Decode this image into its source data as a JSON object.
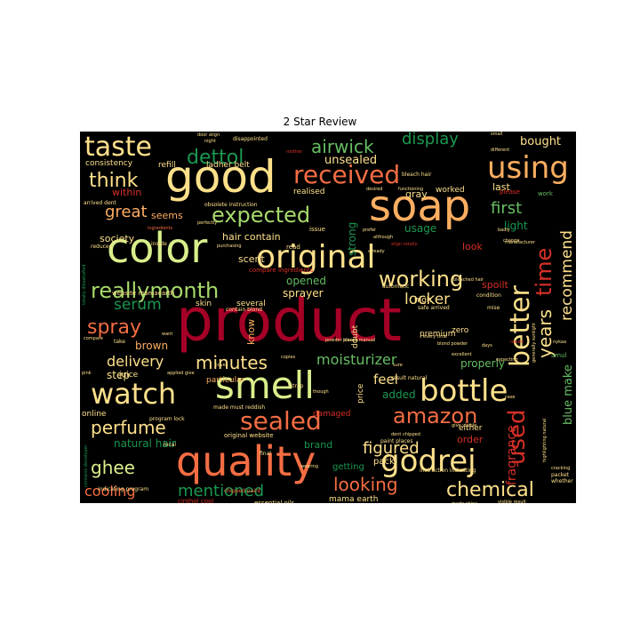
{
  "chart_data": {
    "type": "wordcloud",
    "title": "2 Star Review",
    "background": "#000000",
    "colormap": [
      "#a50026",
      "#d73027",
      "#f46d43",
      "#fdae61",
      "#fee08b",
      "#d9ef8b",
      "#a6d96a",
      "#66bd63",
      "#1a9850",
      "#006837"
    ],
    "words": [
      {
        "text": "product",
        "weight": 100,
        "color": "#a50026"
      },
      {
        "text": "good",
        "weight": 62,
        "color": "#fee08b"
      },
      {
        "text": "soap",
        "weight": 60,
        "color": "#fdae61"
      },
      {
        "text": "color",
        "weight": 58,
        "color": "#d9ef8b"
      },
      {
        "text": "quality",
        "weight": 56,
        "color": "#f46d43"
      },
      {
        "text": "smell",
        "weight": 52,
        "color": "#d9ef8b"
      },
      {
        "text": "original",
        "weight": 46,
        "color": "#fee08b"
      },
      {
        "text": "using",
        "weight": 42,
        "color": "#fdae61"
      },
      {
        "text": "taste",
        "weight": 40,
        "color": "#fee08b"
      },
      {
        "text": "watch",
        "weight": 40,
        "color": "#fee08b"
      },
      {
        "text": "bottle",
        "weight": 40,
        "color": "#fee08b"
      },
      {
        "text": "godrej",
        "weight": 40,
        "color": "#fee08b"
      },
      {
        "text": "better",
        "weight": 38,
        "color": "#fee08b"
      },
      {
        "text": "received",
        "weight": 36,
        "color": "#f46d43"
      },
      {
        "text": "sealed",
        "weight": 34,
        "color": "#f46d43"
      },
      {
        "text": "reallymonth",
        "weight": 32,
        "color": "#a6d96a"
      },
      {
        "text": "expected",
        "weight": 30,
        "color": "#a6d96a"
      },
      {
        "text": "working",
        "weight": 30,
        "color": "#fee08b"
      },
      {
        "text": "used",
        "weight": 30,
        "color": "#d73027"
      },
      {
        "text": "amazon",
        "weight": 30,
        "color": "#f46d43"
      },
      {
        "text": "chemical",
        "weight": 28,
        "color": "#fee08b"
      },
      {
        "text": "think",
        "weight": 26,
        "color": "#fee08b"
      },
      {
        "text": "airwick",
        "weight": 26,
        "color": "#66bd63"
      },
      {
        "text": "dettol",
        "weight": 26,
        "color": "#1a9850"
      },
      {
        "text": "time",
        "weight": 28,
        "color": "#d73027"
      },
      {
        "text": "spray",
        "weight": 24,
        "color": "#f46d43"
      },
      {
        "text": "perfume",
        "weight": 24,
        "color": "#fee08b"
      },
      {
        "text": "minutes",
        "weight": 24,
        "color": "#fee08b"
      },
      {
        "text": "ghee",
        "weight": 24,
        "color": "#d9ef8b"
      },
      {
        "text": "years",
        "weight": 24,
        "color": "#fee08b"
      },
      {
        "text": "looking",
        "weight": 24,
        "color": "#f46d43"
      },
      {
        "text": "mentioned",
        "weight": 22,
        "color": "#1a9850"
      },
      {
        "text": "display",
        "weight": 22,
        "color": "#1a9850"
      },
      {
        "text": "great",
        "weight": 22,
        "color": "#fdae61"
      },
      {
        "text": "recommend",
        "weight": 22,
        "color": "#fee08b"
      },
      {
        "text": "first",
        "weight": 22,
        "color": "#66bd63"
      },
      {
        "text": "figured",
        "weight": 22,
        "color": "#fee08b"
      },
      {
        "text": "cooling",
        "weight": 20,
        "color": "#f46d43"
      },
      {
        "text": "delivery",
        "weight": 20,
        "color": "#fee08b"
      },
      {
        "text": "locker",
        "weight": 20,
        "color": "#fee08b"
      },
      {
        "text": "serum",
        "weight": 20,
        "color": "#1a9850"
      },
      {
        "text": "moisturizer",
        "weight": 18,
        "color": "#66bd63"
      },
      {
        "text": "fragrance",
        "weight": 18,
        "color": "#d73027"
      },
      {
        "text": "blue make",
        "weight": 16,
        "color": "#66bd63"
      },
      {
        "text": "feel",
        "weight": 18,
        "color": "#fee08b"
      },
      {
        "text": "unsealed",
        "weight": 16,
        "color": "#fee08b"
      },
      {
        "text": "bought",
        "weight": 14,
        "color": "#fee08b"
      },
      {
        "text": "strong",
        "weight": 14,
        "color": "#1a9850"
      },
      {
        "text": "brown",
        "weight": 14,
        "color": "#fdae61"
      },
      {
        "text": "natural hair",
        "weight": 14,
        "color": "#1a9850"
      },
      {
        "text": "sprayer",
        "weight": 14,
        "color": "#fee08b"
      },
      {
        "text": "properly",
        "weight": 14,
        "color": "#66bd63"
      },
      {
        "text": "opened",
        "weight": 14,
        "color": "#66bd63"
      },
      {
        "text": "step",
        "weight": 14,
        "color": "#fee08b"
      },
      {
        "text": "added",
        "weight": 14,
        "color": "#1a9850"
      },
      {
        "text": "light",
        "weight": 14,
        "color": "#1a9850"
      },
      {
        "text": "usage",
        "weight": 14,
        "color": "#1a9850"
      },
      {
        "text": "hair contain",
        "weight": 12,
        "color": "#fee08b"
      },
      {
        "text": "seems",
        "weight": 12,
        "color": "#fdae61"
      },
      {
        "text": "within",
        "weight": 12,
        "color": "#d73027"
      },
      {
        "text": "society",
        "weight": 12,
        "color": "#fee08b"
      },
      {
        "text": "scent",
        "weight": 12,
        "color": "#fee08b"
      },
      {
        "text": "know",
        "weight": 12,
        "color": "#fdae61"
      },
      {
        "text": "look",
        "weight": 12,
        "color": "#d73027"
      },
      {
        "text": "last",
        "weight": 12,
        "color": "#fee08b"
      },
      {
        "text": "spoilt",
        "weight": 12,
        "color": "#d73027"
      },
      {
        "text": "gray",
        "weight": 12,
        "color": "#fee08b"
      },
      {
        "text": "brand",
        "weight": 12,
        "color": "#1a9850"
      },
      {
        "text": "order",
        "weight": 12,
        "color": "#d73027"
      },
      {
        "text": "pack",
        "weight": 11,
        "color": "#fee08b"
      },
      {
        "text": "getting",
        "weight": 11,
        "color": "#1a9850"
      },
      {
        "text": "mama earth",
        "weight": 10,
        "color": "#fee08b"
      },
      {
        "text": "consistency",
        "weight": 10,
        "color": "#fee08b"
      },
      {
        "text": "refill",
        "weight": 10,
        "color": "#fee08b"
      },
      {
        "text": "ladher belt",
        "weight": 10,
        "color": "#fee08b"
      },
      {
        "text": "realised",
        "weight": 10,
        "color": "#fee08b"
      },
      {
        "text": "worked",
        "weight": 10,
        "color": "#fee08b"
      },
      {
        "text": "skin",
        "weight": 10,
        "color": "#fee08b"
      },
      {
        "text": "several",
        "weight": 10,
        "color": "#fee08b"
      },
      {
        "text": "zero",
        "weight": 10,
        "color": "#fee08b"
      },
      {
        "text": "premium",
        "weight": 10,
        "color": "#fee08b"
      },
      {
        "text": "doubt",
        "weight": 10,
        "color": "#fee08b"
      },
      {
        "text": "price",
        "weight": 10,
        "color": "#fee08b"
      },
      {
        "text": "damaged",
        "weight": 10,
        "color": "#d73027"
      },
      {
        "text": "either",
        "weight": 10,
        "color": "#fee08b"
      },
      {
        "text": "high",
        "weight": 10,
        "color": "#fee08b"
      },
      {
        "text": "online",
        "weight": 9,
        "color": "#fee08b"
      },
      {
        "text": "particular",
        "weight": 9,
        "color": "#fdae61"
      },
      {
        "text": "juice",
        "weight": 9,
        "color": "#fee08b"
      },
      {
        "text": "website mamaearth",
        "weight": 8,
        "color": "#fee08b"
      },
      {
        "text": "original website",
        "weight": 8,
        "color": "#fee08b"
      },
      {
        "text": "essential oils",
        "weight": 8,
        "color": "#fee08b"
      },
      {
        "text": "cinthol cool",
        "weight": 8,
        "color": "#d73027"
      },
      {
        "text": "compare ingredients",
        "weight": 8,
        "color": "#d73027"
      },
      {
        "text": "issue",
        "weight": 8,
        "color": "#fee08b"
      },
      {
        "text": "read",
        "weight": 8,
        "color": "#fee08b"
      },
      {
        "text": "amul",
        "weight": 8,
        "color": "#66bd63"
      },
      {
        "text": "please",
        "weight": 8,
        "color": "#d73027"
      },
      {
        "text": "work",
        "weight": 8,
        "color": "#66bd63"
      },
      {
        "text": "packet",
        "weight": 7,
        "color": "#fee08b"
      },
      {
        "text": "whether",
        "weight": 7,
        "color": "#fee08b"
      },
      {
        "text": "disappointed",
        "weight": 7,
        "color": "#fee08b"
      },
      {
        "text": "arrived dent",
        "weight": 7,
        "color": "#fee08b"
      },
      {
        "text": "safe arrived",
        "weight": 7,
        "color": "#fee08b"
      },
      {
        "text": "paint places",
        "weight": 7,
        "color": "#fee08b"
      },
      {
        "text": "result natural",
        "weight": 7,
        "color": "#fee08b"
      },
      {
        "text": "program lock",
        "weight": 7,
        "color": "#fee08b"
      },
      {
        "text": "made must reddish",
        "weight": 7,
        "color": "#fee08b"
      },
      {
        "text": "chipped paint",
        "weight": 7,
        "color": "#f46d43"
      },
      {
        "text": "instruction indicating",
        "weight": 7,
        "color": "#fee08b"
      },
      {
        "text": "indicating program",
        "weight": 7,
        "color": "#fee08b"
      },
      {
        "text": "contain blond",
        "weight": 7,
        "color": "#fee08b"
      },
      {
        "text": "obsolete instruction",
        "weight": 7,
        "color": "#fee08b"
      },
      {
        "text": "bleach hair",
        "weight": 7,
        "color": "#fee08b"
      },
      {
        "text": "mise",
        "weight": 7,
        "color": "#fee08b"
      },
      {
        "text": "take",
        "weight": 7,
        "color": "#fee08b"
      },
      {
        "text": "local",
        "weight": 7,
        "color": "#fee08b"
      },
      {
        "text": "final",
        "weight": 7,
        "color": "#fee08b"
      },
      {
        "text": "strap",
        "weight": 7,
        "color": "#fee08b"
      },
      {
        "text": "condition",
        "weight": 7,
        "color": "#fee08b"
      },
      {
        "text": "reduced",
        "weight": 7,
        "color": "#fee08b"
      },
      {
        "text": "inside",
        "weight": 7,
        "color": "#fee08b"
      },
      {
        "text": "automatic",
        "weight": 7,
        "color": "#fee08b"
      },
      {
        "text": "night",
        "weight": 6,
        "color": "#fee08b"
      },
      {
        "text": "mother",
        "weight": 6,
        "color": "#d73027"
      },
      {
        "text": "change",
        "weight": 6,
        "color": "#fee08b"
      },
      {
        "text": "nykaa",
        "weight": 6,
        "color": "#fee08b"
      },
      {
        "text": "return",
        "weight": 6,
        "color": "#d73027"
      },
      {
        "text": "sure",
        "weight": 6,
        "color": "#fee08b"
      },
      {
        "text": "pink",
        "weight": 6,
        "color": "#fee08b"
      },
      {
        "text": "dent chipped",
        "weight": 6,
        "color": "#fee08b"
      },
      {
        "text": "powder bleach",
        "weight": 6,
        "color": "#fee08b"
      },
      {
        "text": "visible result",
        "weight": 6,
        "color": "#fee08b"
      },
      {
        "text": "made china",
        "weight": 6,
        "color": "#fee08b"
      },
      {
        "text": "blond powder",
        "weight": 6,
        "color": "#fee08b"
      },
      {
        "text": "wearing",
        "weight": 6,
        "color": "#fee08b"
      },
      {
        "text": "though",
        "weight": 6,
        "color": "#fee08b"
      },
      {
        "text": "days",
        "weight": 6,
        "color": "#fee08b"
      },
      {
        "text": "expecting",
        "weight": 6,
        "color": "#fee08b"
      },
      {
        "text": "manufacturer",
        "weight": 6,
        "color": "#fee08b"
      },
      {
        "text": "perfectly",
        "weight": 6,
        "color": "#fee08b"
      },
      {
        "text": "ingredients",
        "weight": 6,
        "color": "#f46d43"
      },
      {
        "text": "purchasing",
        "weight": 6,
        "color": "#fee08b"
      },
      {
        "text": "prefer",
        "weight": 6,
        "color": "#fee08b"
      },
      {
        "text": "although",
        "weight": 6,
        "color": "#fee08b"
      },
      {
        "text": "align totally",
        "weight": 6,
        "color": "#d73027"
      },
      {
        "text": "desired",
        "weight": 6,
        "color": "#fee08b"
      },
      {
        "text": "functioning",
        "weight": 6,
        "color": "#fee08b"
      },
      {
        "text": "already",
        "weight": 6,
        "color": "#fee08b"
      },
      {
        "text": "small",
        "weight": 6,
        "color": "#fee08b"
      },
      {
        "text": "different",
        "weight": 6,
        "color": "#fee08b"
      },
      {
        "text": "badly",
        "weight": 6,
        "color": "#fee08b"
      },
      {
        "text": "case",
        "weight": 6,
        "color": "#fee08b"
      },
      {
        "text": "every time",
        "weight": 6,
        "color": "#fee08b"
      },
      {
        "text": "give visible",
        "weight": 6,
        "color": "#fee08b"
      },
      {
        "text": "excellent",
        "weight": 6,
        "color": "#fee08b"
      },
      {
        "text": "applied give",
        "weight": 6,
        "color": "#fee08b"
      },
      {
        "text": "copies",
        "weight": 6,
        "color": "#fee08b"
      },
      {
        "text": "want",
        "weight": 6,
        "color": "#fee08b"
      },
      {
        "text": "compare",
        "weight": 6,
        "color": "#fee08b"
      },
      {
        "text": "totally dissatisfied",
        "weight": 6,
        "color": "#1a9850"
      },
      {
        "text": "highlighting natural",
        "weight": 6,
        "color": "#fee08b"
      },
      {
        "text": "generally sunlight",
        "weight": 6,
        "color": "#fee08b"
      },
      {
        "text": "contains developer",
        "weight": 6,
        "color": "#1a9850"
      },
      {
        "text": "bleached hair",
        "weight": 6,
        "color": "#fee08b"
      },
      {
        "text": "cracking",
        "weight": 6,
        "color": "#fee08b"
      },
      {
        "text": "places manual",
        "weight": 6,
        "color": "#fee08b"
      },
      {
        "text": "cover",
        "weight": 6,
        "color": "#fee08b"
      },
      {
        "text": "door align",
        "weight": 6,
        "color": "#fee08b"
      }
    ]
  }
}
